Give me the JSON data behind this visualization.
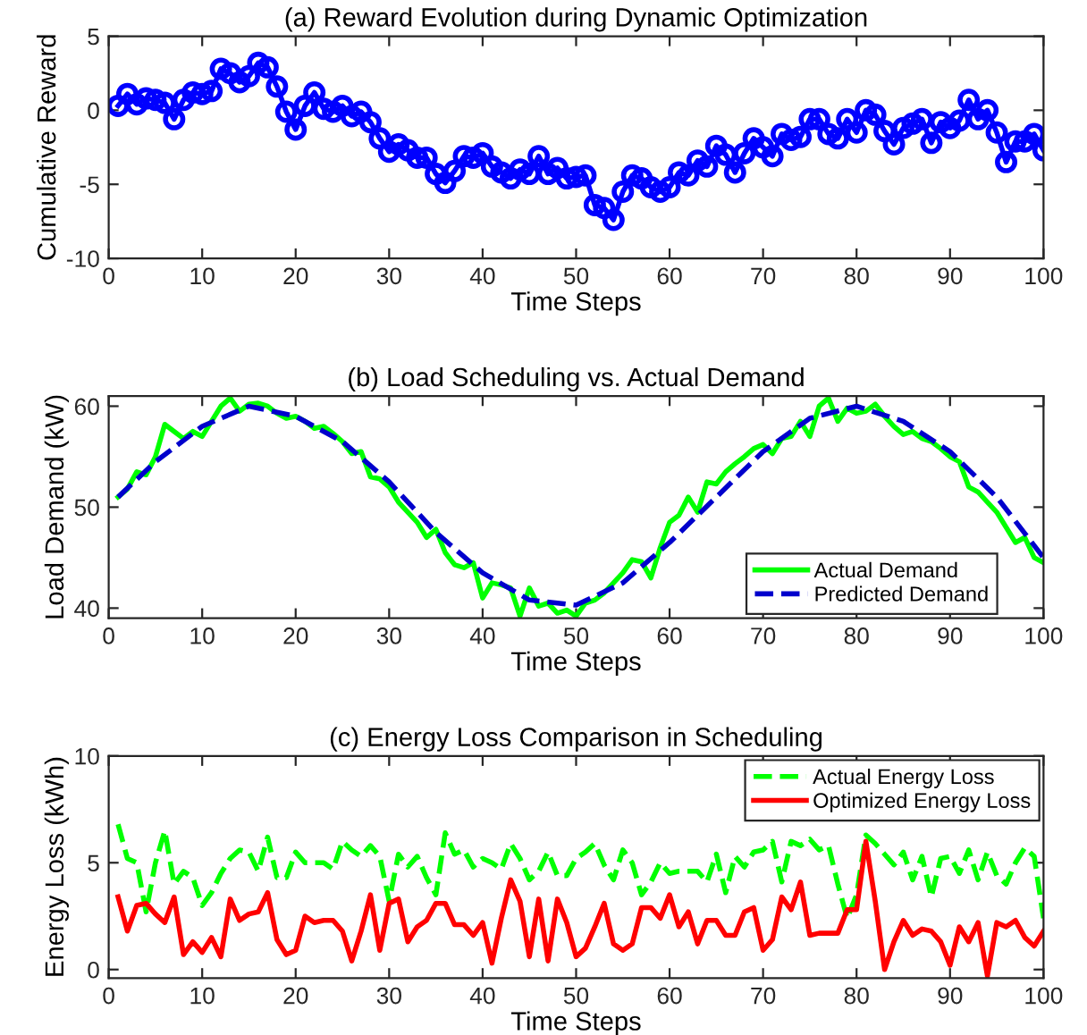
{
  "chart_data": [
    {
      "type": "line",
      "title": "(a) Reward Evolution during Dynamic Optimization",
      "xlabel": "Time Steps",
      "ylabel": "Cumulative Reward",
      "xlim": [
        0,
        100
      ],
      "xticks": [
        0,
        10,
        20,
        30,
        40,
        50,
        60,
        70,
        80,
        90,
        100
      ],
      "ylim": [
        -10,
        5
      ],
      "yticks": [
        -10,
        -5,
        0,
        5
      ],
      "grid": false,
      "legend": false,
      "marker": "circle",
      "line_style": "solid",
      "x": [
        1,
        2,
        3,
        4,
        5,
        6,
        7,
        8,
        9,
        10,
        11,
        12,
        13,
        14,
        15,
        16,
        17,
        18,
        19,
        20,
        21,
        22,
        23,
        24,
        25,
        26,
        27,
        28,
        29,
        30,
        31,
        32,
        33,
        34,
        35,
        36,
        37,
        38,
        39,
        40,
        41,
        42,
        43,
        44,
        45,
        46,
        47,
        48,
        49,
        50,
        51,
        52,
        53,
        54,
        55,
        56,
        57,
        58,
        59,
        60,
        61,
        62,
        63,
        64,
        65,
        66,
        67,
        68,
        69,
        70,
        71,
        72,
        73,
        74,
        75,
        76,
        77,
        78,
        79,
        80,
        81,
        82,
        83,
        84,
        85,
        86,
        87,
        88,
        89,
        90,
        91,
        92,
        93,
        94,
        95,
        96,
        97,
        98,
        99,
        100
      ],
      "series": [
        {
          "color": "#0000ff",
          "values": [
            0.3,
            1.1,
            0.4,
            0.8,
            0.7,
            0.5,
            -0.6,
            0.7,
            1.2,
            1.1,
            1.3,
            2.8,
            2.5,
            1.9,
            2.3,
            3.2,
            2.9,
            1.6,
            -0.1,
            -1.3,
            0.3,
            1.2,
            0.1,
            -0.1,
            0.3,
            -0.4,
            -0.1,
            -0.8,
            -1.9,
            -2.8,
            -2.3,
            -2.7,
            -3.2,
            -3.2,
            -4.3,
            -4.9,
            -4.1,
            -3.1,
            -3.2,
            -2.9,
            -3.8,
            -4.2,
            -4.6,
            -4.0,
            -4.3,
            -3.1,
            -4.3,
            -3.9,
            -4.6,
            -4.5,
            -4.4,
            -6.4,
            -6.6,
            -7.4,
            -5.5,
            -4.4,
            -4.6,
            -5.2,
            -5.5,
            -5.2,
            -4.2,
            -4.4,
            -3.4,
            -3.8,
            -2.4,
            -3.0,
            -4.2,
            -2.9,
            -1.9,
            -2.5,
            -3.1,
            -1.6,
            -2.0,
            -1.8,
            -0.6,
            -0.6,
            -1.6,
            -1.9,
            -0.6,
            -1.5,
            0.0,
            -0.3,
            -1.4,
            -2.3,
            -1.2,
            -0.9,
            -0.6,
            -2.2,
            -0.8,
            -1.2,
            -0.7,
            0.7,
            -0.6,
            0.0,
            -1.5,
            -3.5,
            -2.1,
            -2.1,
            -1.6,
            -2.7
          ]
        }
      ]
    },
    {
      "type": "line",
      "title": "(b) Load Scheduling vs. Actual Demand",
      "xlabel": "Time Steps",
      "ylabel": "Load Demand (kW)",
      "xlim": [
        0,
        100
      ],
      "xticks": [
        0,
        10,
        20,
        30,
        40,
        50,
        60,
        70,
        80,
        90,
        100
      ],
      "ylim": [
        39,
        61
      ],
      "yticks": [
        40,
        50,
        60
      ],
      "grid": false,
      "legend": "bottom right",
      "x": [
        1,
        2,
        3,
        4,
        5,
        6,
        7,
        8,
        9,
        10,
        11,
        12,
        13,
        14,
        15,
        16,
        17,
        18,
        19,
        20,
        21,
        22,
        23,
        24,
        25,
        26,
        27,
        28,
        29,
        30,
        31,
        32,
        33,
        34,
        35,
        36,
        37,
        38,
        39,
        40,
        41,
        42,
        43,
        44,
        45,
        46,
        47,
        48,
        49,
        50,
        51,
        52,
        53,
        54,
        55,
        56,
        57,
        58,
        59,
        60,
        61,
        62,
        63,
        64,
        65,
        66,
        67,
        68,
        69,
        70,
        71,
        72,
        73,
        74,
        75,
        76,
        77,
        78,
        79,
        80,
        81,
        82,
        83,
        84,
        85,
        86,
        87,
        88,
        89,
        90,
        91,
        92,
        93,
        94,
        95,
        96,
        97,
        98,
        99,
        100
      ],
      "series": [
        {
          "name": "Actual Demand",
          "color": "#00ff00",
          "line_style": "solid",
          "values": [
            51,
            51.8,
            53.5,
            53.2,
            55,
            58.2,
            57.5,
            56.8,
            57.5,
            57,
            58.5,
            60,
            60.8,
            59.5,
            60.2,
            60.3,
            60,
            59.3,
            58.8,
            59,
            58.5,
            57.8,
            58,
            57.3,
            56.5,
            55.3,
            55.5,
            53,
            52.8,
            52,
            50.5,
            49.5,
            48.5,
            47,
            47.8,
            45.5,
            44.3,
            44,
            44.5,
            41,
            42.5,
            42.3,
            42,
            39.2,
            42,
            40.2,
            40.5,
            39.5,
            39.8,
            39.2,
            40.5,
            40.8,
            41.5,
            42.5,
            43.5,
            44.8,
            44.6,
            43,
            46,
            48.5,
            49.2,
            51,
            49.5,
            52.5,
            52.3,
            53.5,
            54.3,
            55,
            55.8,
            56.2,
            55.3,
            56.8,
            57,
            58.5,
            57,
            60,
            60.8,
            58.5,
            59.8,
            59.3,
            59.5,
            60.2,
            59,
            58,
            57.2,
            57.5,
            56.8,
            56.5,
            55.8,
            55,
            54.5,
            52,
            51.5,
            50.5,
            49.5,
            48,
            46.5,
            47,
            45,
            44.5
          ]
        },
        {
          "name": "Predicted Demand",
          "color": "#0000cc",
          "line_style": "dashed",
          "x": [
            1,
            5,
            10,
            15,
            20,
            25,
            30,
            35,
            40,
            45,
            50,
            55,
            60,
            65,
            70,
            75,
            80,
            85,
            90,
            95,
            100
          ],
          "values": [
            51,
            54.5,
            58,
            60,
            59,
            56.5,
            52.5,
            47.5,
            43.5,
            40.8,
            40.3,
            42.5,
            46.5,
            51,
            55.5,
            58.8,
            60,
            58.5,
            55.5,
            51,
            45
          ]
        }
      ]
    },
    {
      "type": "line",
      "title": "(c) Energy Loss Comparison in Scheduling",
      "xlabel": "Time Steps",
      "ylabel": "Energy Loss (kWh)",
      "xlim": [
        0,
        100
      ],
      "xticks": [
        0,
        10,
        20,
        30,
        40,
        50,
        60,
        70,
        80,
        90,
        100
      ],
      "ylim": [
        -0.4,
        10
      ],
      "yticks": [
        0,
        5,
        10
      ],
      "grid": false,
      "legend": "top right",
      "x": [
        1,
        2,
        3,
        4,
        5,
        6,
        7,
        8,
        9,
        10,
        11,
        12,
        13,
        14,
        15,
        16,
        17,
        18,
        19,
        20,
        21,
        22,
        23,
        24,
        25,
        26,
        27,
        28,
        29,
        30,
        31,
        32,
        33,
        34,
        35,
        36,
        37,
        38,
        39,
        40,
        41,
        42,
        43,
        44,
        45,
        46,
        47,
        48,
        49,
        50,
        51,
        52,
        53,
        54,
        55,
        56,
        57,
        58,
        59,
        60,
        61,
        62,
        63,
        64,
        65,
        66,
        67,
        68,
        69,
        70,
        71,
        72,
        73,
        74,
        75,
        76,
        77,
        78,
        79,
        80,
        81,
        82,
        83,
        84,
        85,
        86,
        87,
        88,
        89,
        90,
        91,
        92,
        93,
        94,
        95,
        96,
        97,
        98,
        99,
        100
      ],
      "series": [
        {
          "name": "Actual Energy Loss",
          "color": "#00ff00",
          "line_style": "dashed",
          "values": [
            6.8,
            5.2,
            5.0,
            2.7,
            5.0,
            6.5,
            4.0,
            4.6,
            4.3,
            3.0,
            3.6,
            4.5,
            5.2,
            5.6,
            5.5,
            4.6,
            6.2,
            4.3,
            4.3,
            5.5,
            5.0,
            5.0,
            5.0,
            4.7,
            6.0,
            5.6,
            5.3,
            5.8,
            5.3,
            3.2,
            5.4,
            4.8,
            5.3,
            4.3,
            3.5,
            6.4,
            5.4,
            5.6,
            4.8,
            5.2,
            5.0,
            4.7,
            5.9,
            5.2,
            4.2,
            4.6,
            5.5,
            4.4,
            4.4,
            5.2,
            5.5,
            5.9,
            4.9,
            4.2,
            5.6,
            5.0,
            3.5,
            4.1,
            5.0,
            4.5,
            4.6,
            4.6,
            4.6,
            4.1,
            5.4,
            3.6,
            5.3,
            4.8,
            5.5,
            5.6,
            6.0,
            4.1,
            6.0,
            5.8,
            6.1,
            5.6,
            5.8,
            4.0,
            2.4,
            3.5,
            6.3,
            5.9,
            5.4,
            4.9,
            5.5,
            4.2,
            5.3,
            3.4,
            5.2,
            5.3,
            4.5,
            5.6,
            4.2,
            5.5,
            4.4,
            4.0,
            5.0,
            5.7,
            5.3,
            2.4
          ]
        },
        {
          "name": "Optimized Energy Loss",
          "color": "#ff0000",
          "line_style": "solid",
          "values": [
            3.4,
            1.8,
            3.0,
            3.1,
            2.6,
            2.2,
            3.4,
            0.7,
            1.3,
            0.8,
            1.5,
            0.6,
            3.3,
            2.3,
            2.6,
            2.7,
            3.6,
            1.4,
            0.7,
            0.9,
            2.5,
            2.2,
            2.3,
            2.3,
            1.8,
            0.4,
            1.8,
            3.5,
            0.9,
            3.1,
            3.3,
            1.3,
            2.0,
            2.3,
            3.1,
            3.1,
            2.1,
            2.1,
            1.6,
            2.2,
            0.3,
            2.4,
            4.2,
            3.2,
            0.6,
            3.3,
            0.4,
            3.3,
            2.2,
            0.6,
            1.0,
            2.0,
            3.1,
            1.2,
            0.9,
            1.2,
            2.9,
            2.9,
            2.4,
            3.5,
            2.0,
            2.7,
            1.2,
            2.3,
            2.3,
            1.6,
            1.6,
            2.7,
            2.9,
            0.9,
            1.4,
            3.4,
            2.8,
            4.1,
            1.6,
            1.7,
            1.7,
            1.7,
            2.8,
            2.8,
            6.0,
            3.2,
            0.0,
            1.3,
            2.3,
            1.6,
            1.9,
            1.8,
            1.3,
            0.2,
            2.0,
            1.3,
            2.2,
            -0.3,
            2.2,
            2.0,
            2.3,
            1.5,
            1.1,
            1.8
          ]
        }
      ]
    }
  ]
}
